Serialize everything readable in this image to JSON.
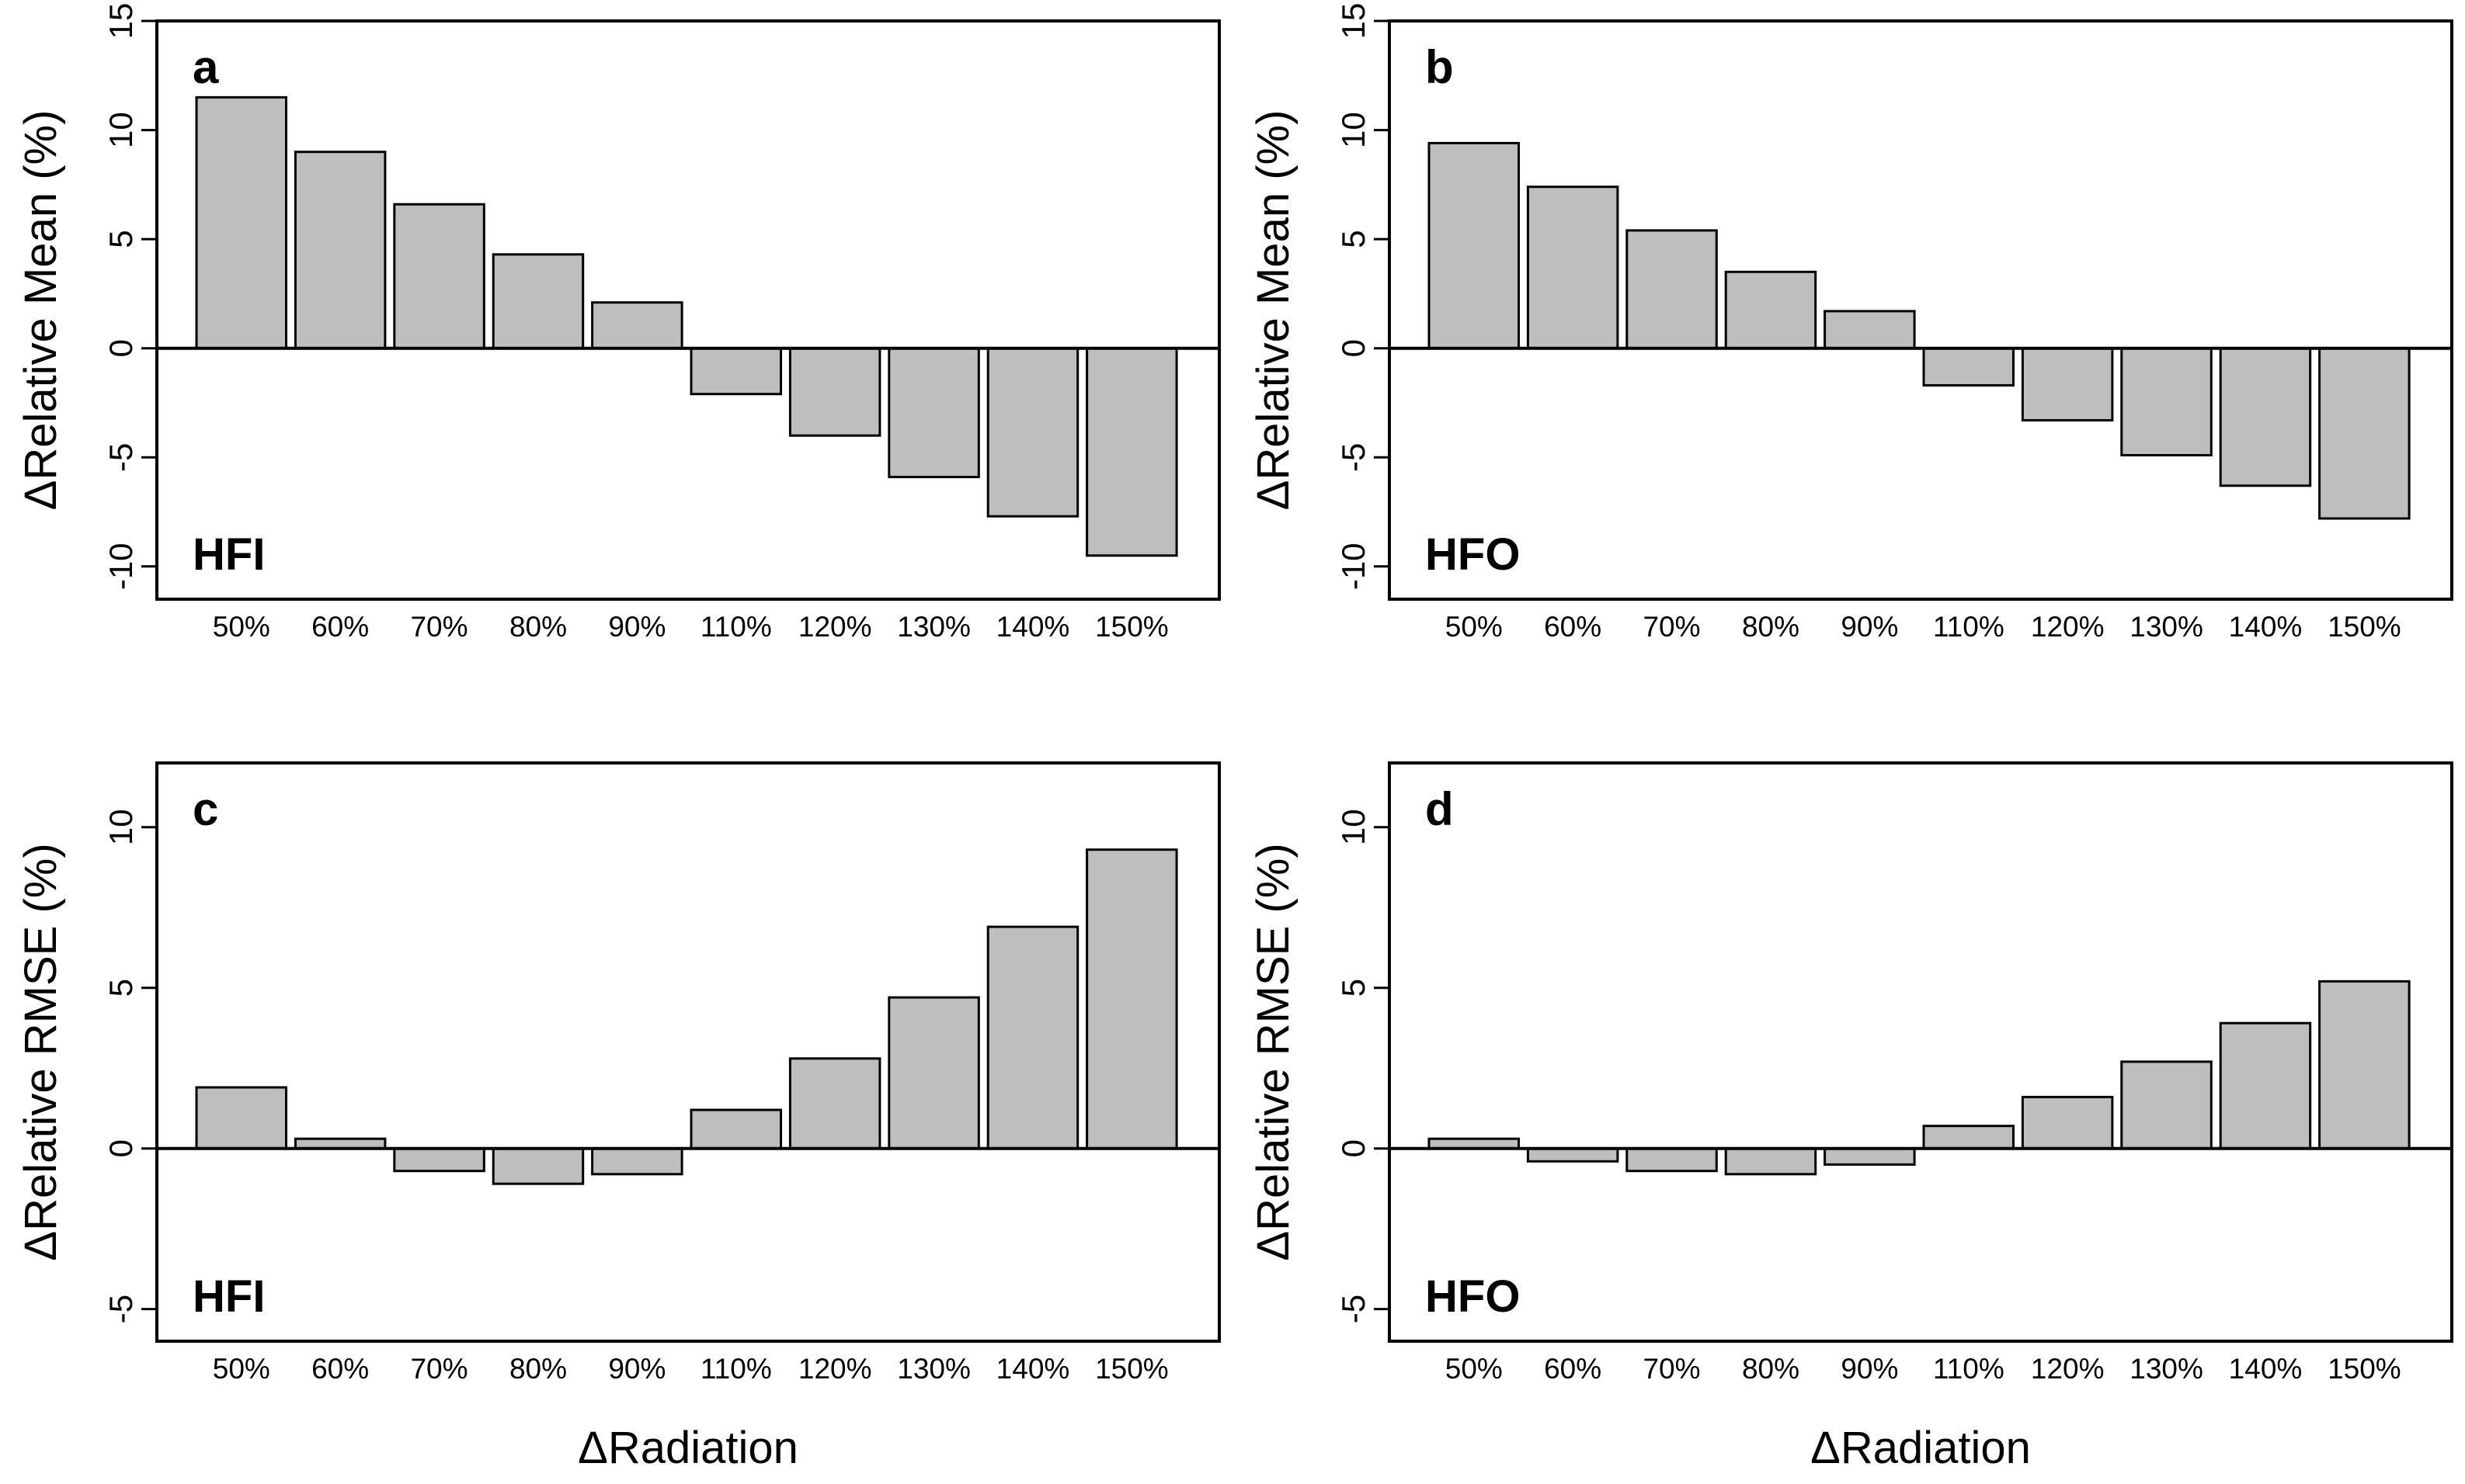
{
  "figure": {
    "background": "#ffffff",
    "bar_fill": "#bebebe",
    "bar_stroke": "#000000",
    "axis_color": "#000000",
    "x_axis_title": "ΔRadiation",
    "categories": [
      "50%",
      "60%",
      "70%",
      "80%",
      "90%",
      "110%",
      "120%",
      "130%",
      "140%",
      "150%"
    ]
  },
  "chart_data": [
    {
      "type": "bar",
      "panel_letter": "a",
      "group_label": "HFI",
      "title": "",
      "xlabel": "",
      "ylabel": "ΔRelative Mean (%)",
      "categories": [
        "50%",
        "60%",
        "70%",
        "80%",
        "90%",
        "110%",
        "120%",
        "130%",
        "140%",
        "150%"
      ],
      "values": [
        11.5,
        9.0,
        6.6,
        4.3,
        2.1,
        -2.1,
        -4.0,
        -5.9,
        -7.7,
        -9.5
      ],
      "ylim": [
        -11.5,
        15
      ],
      "yticks": [
        -10,
        -5,
        0,
        5,
        10,
        15
      ],
      "grid": "off",
      "legend": "none"
    },
    {
      "type": "bar",
      "panel_letter": "b",
      "group_label": "HFO",
      "title": "",
      "xlabel": "",
      "ylabel": "ΔRelative Mean (%)",
      "categories": [
        "50%",
        "60%",
        "70%",
        "80%",
        "90%",
        "110%",
        "120%",
        "130%",
        "140%",
        "150%"
      ],
      "values": [
        9.4,
        7.4,
        5.4,
        3.5,
        1.7,
        -1.7,
        -3.3,
        -4.9,
        -6.3,
        -7.8
      ],
      "ylim": [
        -11.5,
        15
      ],
      "yticks": [
        -10,
        -5,
        0,
        5,
        10,
        15
      ],
      "grid": "off",
      "legend": "none"
    },
    {
      "type": "bar",
      "panel_letter": "c",
      "group_label": "HFI",
      "title": "",
      "xlabel": "ΔRadiation",
      "ylabel": "ΔRelative RMSE (%)",
      "categories": [
        "50%",
        "60%",
        "70%",
        "80%",
        "90%",
        "110%",
        "120%",
        "130%",
        "140%",
        "150%"
      ],
      "values": [
        1.9,
        0.3,
        -0.7,
        -1.1,
        -0.8,
        1.2,
        2.8,
        4.7,
        6.9,
        9.3
      ],
      "ylim": [
        -6,
        12
      ],
      "yticks": [
        -5,
        0,
        5,
        10
      ],
      "grid": "off",
      "legend": "none"
    },
    {
      "type": "bar",
      "panel_letter": "d",
      "group_label": "HFO",
      "title": "",
      "xlabel": "ΔRadiation",
      "ylabel": "ΔRelative RMSE (%)",
      "categories": [
        "50%",
        "60%",
        "70%",
        "80%",
        "90%",
        "110%",
        "120%",
        "130%",
        "140%",
        "150%"
      ],
      "values": [
        0.3,
        -0.4,
        -0.7,
        -0.8,
        -0.5,
        0.7,
        1.6,
        2.7,
        3.9,
        5.2
      ],
      "ylim": [
        -6,
        12
      ],
      "yticks": [
        -5,
        0,
        5,
        10
      ],
      "grid": "off",
      "legend": "none"
    }
  ]
}
